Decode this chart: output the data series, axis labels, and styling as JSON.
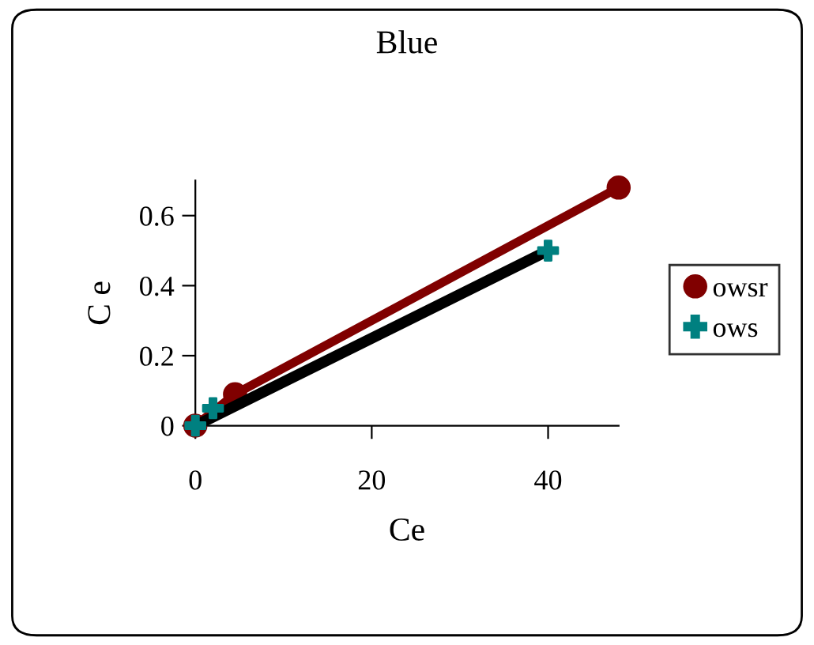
{
  "chart_data": {
    "type": "line",
    "title": "Blue",
    "xlabel": "Ce",
    "ylabel": "C e",
    "xlim": [
      0,
      48
    ],
    "xticks": [
      0,
      20,
      40
    ],
    "ylim": [
      0,
      0.7
    ],
    "yticks": [
      0,
      0.2,
      0.4,
      0.6
    ],
    "grid": false,
    "legend": "right",
    "series": [
      {
        "name": "owsr",
        "color": "#800000",
        "marker": "circle",
        "x": [
          0,
          4.5,
          48
        ],
        "values": [
          0,
          0.09,
          0.68
        ]
      },
      {
        "name": "ows",
        "type": "scatter",
        "color": "#008080",
        "marker": "cross",
        "x": [
          0,
          2,
          40
        ],
        "values": [
          0,
          0.05,
          0.5
        ]
      },
      {
        "type": "line",
        "color": "#000000",
        "marker": "none",
        "x": [
          0,
          40
        ],
        "values": [
          0,
          0.5
        ]
      }
    ]
  }
}
